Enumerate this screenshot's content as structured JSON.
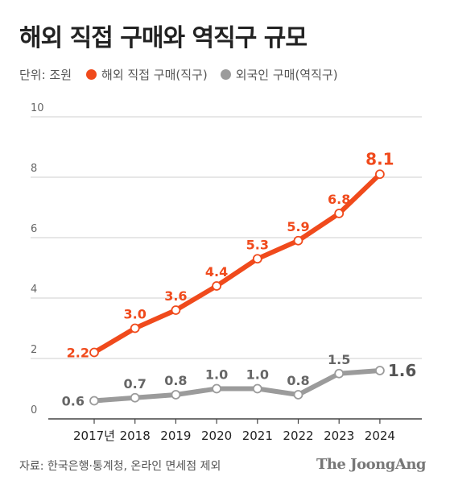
{
  "title": "해외 직접 구매와 역직구 규모",
  "unit_label": "단위: 조원",
  "colors": {
    "series1": "#f04a1c",
    "series2": "#9b9b9b",
    "axis": "#444444",
    "grid": "#cfcfcf"
  },
  "chart_data": {
    "type": "line",
    "categories": [
      "2017년",
      "2018",
      "2019",
      "2020",
      "2021",
      "2022",
      "2023",
      "2024"
    ],
    "ylim": [
      0,
      10
    ],
    "yticks": [
      "0",
      "2",
      "4",
      "6",
      "8",
      "10"
    ],
    "grid": true,
    "legend_position": "top-left",
    "series": [
      {
        "name": "해외 직접 구매(직구)",
        "values": [
          2.2,
          3.0,
          3.6,
          4.4,
          5.3,
          5.9,
          6.8,
          8.1
        ],
        "labels": [
          "2.2",
          "3.0",
          "3.6",
          "4.4",
          "5.3",
          "5.9",
          "6.8",
          "8.1"
        ]
      },
      {
        "name": "외국인 구매(역직구)",
        "values": [
          0.6,
          0.7,
          0.8,
          1.0,
          1.0,
          0.8,
          1.5,
          1.6
        ],
        "labels": [
          "0.6",
          "0.7",
          "0.8",
          "1.0",
          "1.0",
          "0.8",
          "1.5",
          "1.6"
        ]
      }
    ]
  },
  "footer": {
    "source": "자료: 한국은행·통계청, 온라인 면세점 제외",
    "brand": "The JoongAng"
  }
}
